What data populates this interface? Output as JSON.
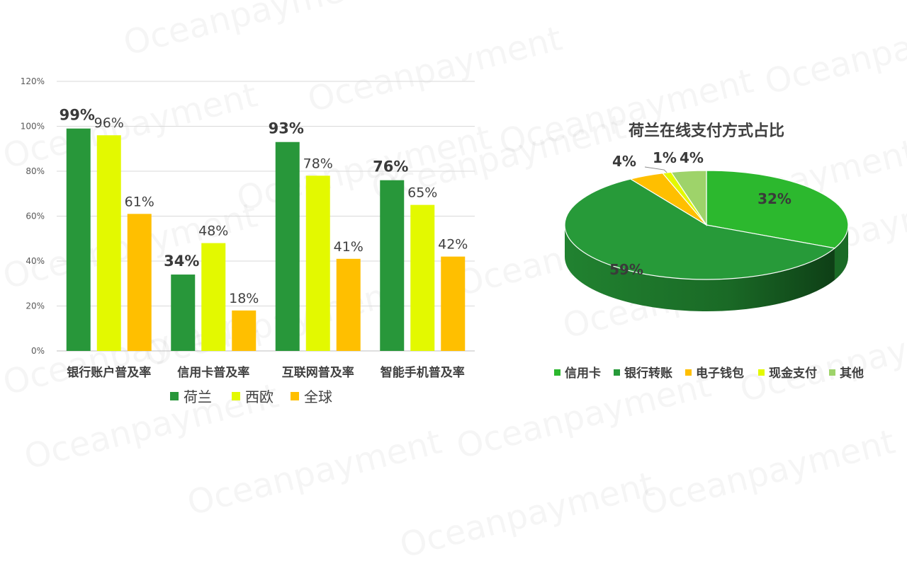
{
  "watermark": "Oceanpayment",
  "chart_data": [
    {
      "type": "bar",
      "categories": [
        "银行账户普及率",
        "信用卡普及率",
        "互联网普及率",
        "智能手机普及率"
      ],
      "series": [
        {
          "name": "荷兰",
          "values": [
            99,
            34,
            93,
            76
          ],
          "color": "#28973A"
        },
        {
          "name": "西欧",
          "values": [
            96,
            48,
            78,
            65
          ],
          "color": "#E3F900"
        },
        {
          "name": "全球",
          "values": [
            61,
            18,
            41,
            42
          ],
          "color": "#FFBF00"
        }
      ],
      "value_suffix": "%",
      "ylim": [
        0,
        120
      ],
      "yticks": [
        0,
        20,
        40,
        60,
        80,
        100,
        120
      ],
      "grid": true,
      "legend": "bottom"
    },
    {
      "type": "pie",
      "title": "荷兰在线支付方式占比",
      "labels": [
        "信用卡",
        "银行转账",
        "电子钱包",
        "现金支付",
        "其他"
      ],
      "values": [
        32,
        59,
        4,
        1,
        4
      ],
      "colors": [
        "#2CB82E",
        "#279A39",
        "#FFBF00",
        "#E3F900",
        "#9ED36A"
      ],
      "value_suffix": "%",
      "legend": "bottom"
    }
  ]
}
